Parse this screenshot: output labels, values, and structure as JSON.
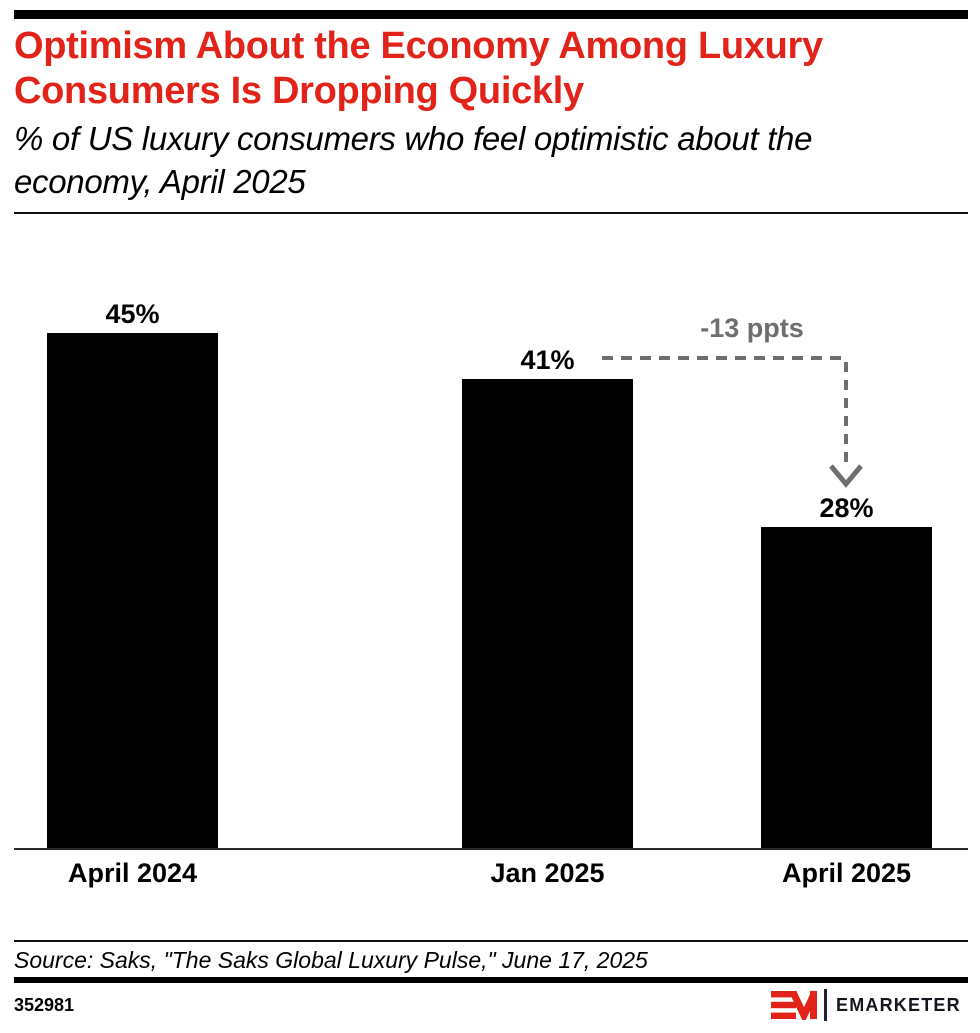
{
  "header": {
    "title": "Optimism About the Economy Among Luxury Consumers Is Dropping Quickly",
    "subtitle": "% of US luxury consumers who feel optimistic about the economy, April 2025"
  },
  "chart_data": {
    "type": "bar",
    "title": "Optimism About the Economy Among Luxury Consumers Is Dropping Quickly",
    "subtitle": "% of US luxury consumers who feel optimistic about the economy, April 2025",
    "categories": [
      "April 2024",
      "Jan 2025",
      "April 2025"
    ],
    "values": [
      45,
      41,
      28
    ],
    "value_labels": [
      "45%",
      "41%",
      "28%"
    ],
    "ylim": [
      0,
      55
    ],
    "grid": "off",
    "bar_color": "#000000",
    "annotation": {
      "text": "-13 ppts",
      "from_category": "Jan 2025",
      "to_category": "April 2025",
      "color": "#6e6e6e"
    }
  },
  "footer": {
    "source": "Source: Saks, \"The Saks Global Luxury Pulse,\" June 17, 2025",
    "chart_id": "352981",
    "brand": "EMARKETER"
  },
  "colors": {
    "accent_red": "#e2231a",
    "annotation_gray": "#6e6e6e",
    "bar_black": "#000000"
  }
}
